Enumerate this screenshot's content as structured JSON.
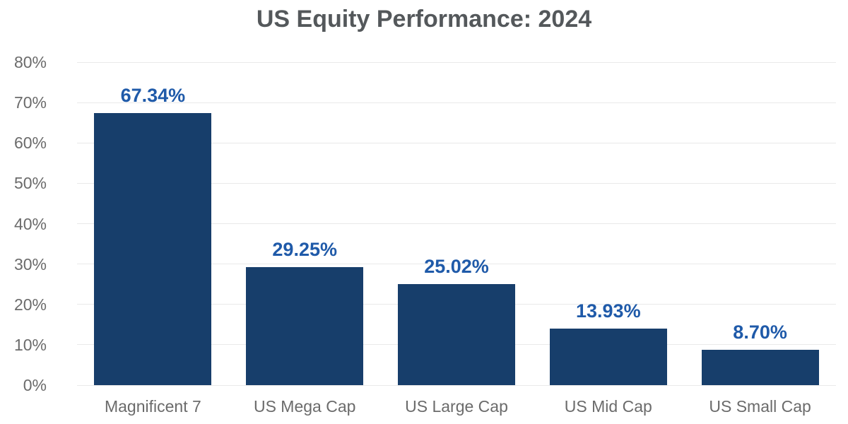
{
  "chart_data": {
    "type": "bar",
    "title": "US Equity Performance: 2024",
    "categories": [
      "Magnificent 7",
      "US Mega Cap",
      "US Large Cap",
      "US Mid Cap",
      "US Small Cap"
    ],
    "values": [
      67.34,
      29.25,
      25.02,
      13.93,
      8.7
    ],
    "data_labels": [
      "67.34%",
      "29.25%",
      "25.02%",
      "13.93%",
      "8.70%"
    ],
    "xlabel": "",
    "ylabel": "",
    "ylim": [
      0,
      80
    ],
    "ytick_step": 10,
    "ytick_labels": [
      "0%",
      "10%",
      "20%",
      "30%",
      "40%",
      "50%",
      "60%",
      "70%",
      "80%"
    ],
    "grid": "horizontal",
    "legend_position": "none",
    "colors": {
      "bar": "#173e6b",
      "data_label": "#1f5aa9",
      "title": "#54585b",
      "axis_text": "#6b6b6b",
      "gridline": "#e9e9e9",
      "background": "#ffffff"
    }
  }
}
